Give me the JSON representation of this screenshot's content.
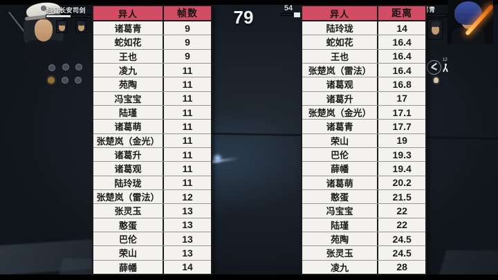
{
  "colors": {
    "header_bg": "#d24d63",
    "table_bg": "#f3f2ee",
    "table_border": "#1c1c1e",
    "row_divider": "#97979b",
    "accent_orange": "#ff8c28"
  },
  "hud": {
    "player_name": "抖音长安司剑",
    "enemy_name": "诸葛青",
    "counter_main": "79",
    "counter_secondary": "54",
    "skill_count": "12"
  },
  "icons": {
    "right_action": "leap-action-icon",
    "right_person": "character-count-icon",
    "right_hand": "hand-indicator-icon",
    "left_buffs": "buff-status-icons"
  },
  "left_table": {
    "headers": [
      "异人",
      "帧数"
    ],
    "rows": [
      [
        "诸葛青",
        "9"
      ],
      [
        "蛇如花",
        "9"
      ],
      [
        "王也",
        "9"
      ],
      [
        "凌九",
        "11"
      ],
      [
        "苑陶",
        "11"
      ],
      [
        "冯宝宝",
        "11"
      ],
      [
        "陆瑾",
        "11"
      ],
      [
        "诸葛萌",
        "11"
      ],
      [
        "张楚岚（金光）",
        "11"
      ],
      [
        "诸葛升",
        "11"
      ],
      [
        "诸葛观",
        "11"
      ],
      [
        "陆玲珑",
        "11"
      ],
      [
        "张楚岚（雷法）",
        "12"
      ],
      [
        "张灵玉",
        "13"
      ],
      [
        "憨蛋",
        "13"
      ],
      [
        "巴伦",
        "13"
      ],
      [
        "荣山",
        "13"
      ],
      [
        "薛幡",
        "14"
      ]
    ]
  },
  "right_table": {
    "headers": [
      "异人",
      "距离"
    ],
    "rows": [
      [
        "陆玲珑",
        "14"
      ],
      [
        "蛇如花",
        "16.4"
      ],
      [
        "王也",
        "16.4"
      ],
      [
        "张楚岚（雷法）",
        "16.4"
      ],
      [
        "诸葛观",
        "16.8"
      ],
      [
        "诸葛升",
        "17"
      ],
      [
        "张楚岚（金光）",
        "17.1"
      ],
      [
        "诸葛青",
        "17.7"
      ],
      [
        "荣山",
        "19"
      ],
      [
        "巴伦",
        "19.3"
      ],
      [
        "薛幡",
        "19.4"
      ],
      [
        "诸葛萌",
        "20.2"
      ],
      [
        "憨蛋",
        "21.5"
      ],
      [
        "冯宝宝",
        "22"
      ],
      [
        "陆瑾",
        "22"
      ],
      [
        "苑陶",
        "24.5"
      ],
      [
        "张灵玉",
        "24.5"
      ],
      [
        "凌九",
        "28"
      ]
    ]
  }
}
